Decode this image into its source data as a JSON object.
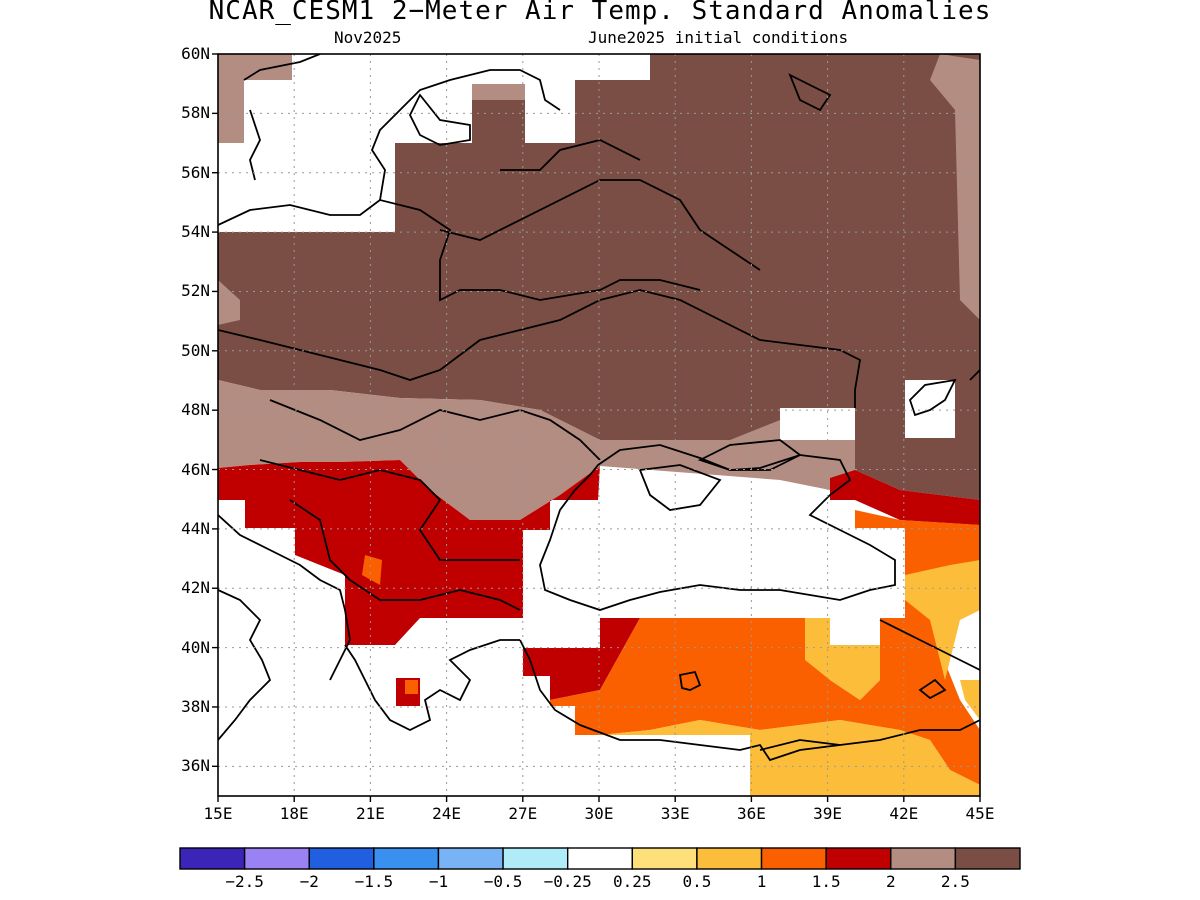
{
  "header": {
    "title": "NCAR_CESM1 2−Meter Air Temp. Standard Anomalies",
    "left_subtitle": "Nov2025",
    "right_subtitle": "June2025 initial conditions"
  },
  "map": {
    "lon_range": [
      15,
      45
    ],
    "lat_range": [
      35,
      60
    ],
    "lat_labels": [
      "60N",
      "58N",
      "56N",
      "54N",
      "52N",
      "50N",
      "48N",
      "46N",
      "44N",
      "42N",
      "40N",
      "38N",
      "36N"
    ],
    "lon_labels": [
      "15E",
      "18E",
      "21E",
      "24E",
      "27E",
      "30E",
      "33E",
      "36E",
      "39E",
      "42E",
      "45E"
    ],
    "gridlines": true
  },
  "legend": {
    "colors": [
      "#3b24b8",
      "#9a82f5",
      "#2060e0",
      "#3a90ee",
      "#78b4f5",
      "#b0ecf8",
      "#ffffff",
      "#fde07a",
      "#fbbd3a",
      "#fa6000",
      "#c00000",
      "#b38d82",
      "#7a4e45"
    ],
    "labels": [
      "−2.5",
      "−2",
      "−1.5",
      "−1",
      "−0.5",
      "−0.25",
      "0.25",
      "0.5",
      "1",
      "1.5",
      "2",
      "2.5"
    ]
  },
  "colors": {
    "anomaly_2_5_plus": "#7a4e45",
    "anomaly_2_to_2_5": "#b38d82",
    "anomaly_1_5_to_2": "#c00000",
    "anomaly_1_to_1_5": "#fa6000",
    "anomaly_0_5_to_1": "#fbbd3a",
    "anomaly_0_25_to_0_5": "#fde07a"
  }
}
